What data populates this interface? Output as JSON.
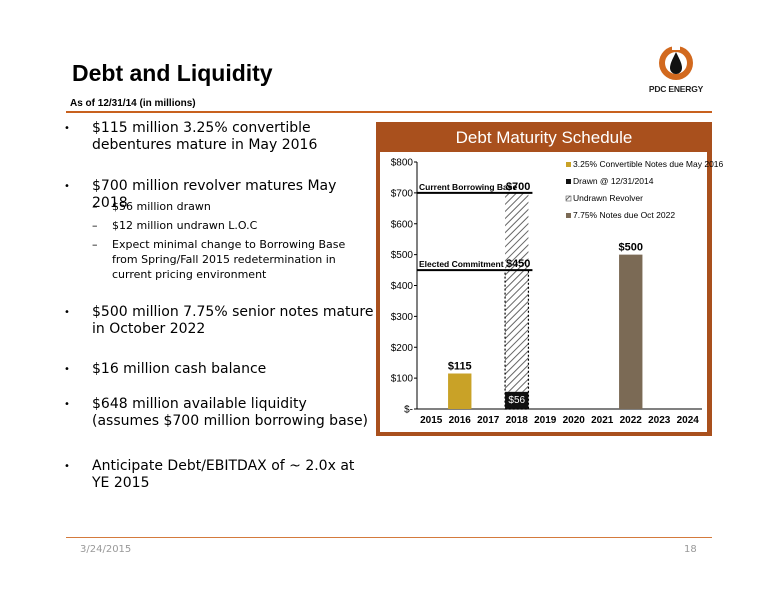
{
  "slide": {
    "title": "Debt and Liquidity",
    "subtitle": "As of 12/31/14 (in millions)",
    "logo_text": "PDC ENERGY",
    "footer_date": "3/24/2015",
    "page_number": "18"
  },
  "bullets": [
    {
      "text": "$115 million 3.25% convertible debentures mature in May 2016"
    },
    {
      "text": "$700 million revolver matures May 2018"
    },
    {
      "text": "$500 million 7.75% senior notes mature in October 2022"
    },
    {
      "text": "$16 million cash balance"
    },
    {
      "text": "$648 million available liquidity (assumes $700 million borrowing base)"
    },
    {
      "text": "Anticipate Debt/EBITDAX of ~ 2.0x at YE 2015"
    }
  ],
  "sub_bullets": [
    {
      "text": "$56 million drawn"
    },
    {
      "text": "$12 million undrawn L.O.C"
    },
    {
      "text": "Expect minimal change to Borrowing Base from Spring/Fall 2015 redetermination in current pricing environment"
    }
  ],
  "chart_data": {
    "type": "bar",
    "title": "Debt Maturity Schedule",
    "categories": [
      "2015",
      "2016",
      "2017",
      "2018",
      "2019",
      "2020",
      "2021",
      "2022",
      "2023",
      "2024"
    ],
    "y_ticks": [
      "$-",
      "$100",
      "$200",
      "$300",
      "$400",
      "$500",
      "$600",
      "$700",
      "$800"
    ],
    "ylim": [
      0,
      800
    ],
    "grid": false,
    "legend_position": "top-right",
    "series": [
      {
        "name": "3.25% Convertible Notes due May 2016",
        "color": "#c9a227",
        "values": [
          0,
          115,
          0,
          0,
          0,
          0,
          0,
          0,
          0,
          0
        ]
      },
      {
        "name": "Drawn @ 12/31/2014",
        "color": "#111111",
        "values": [
          0,
          0,
          0,
          56,
          0,
          0,
          0,
          0,
          0,
          0
        ]
      },
      {
        "name": "Undrawn Revolver",
        "color": "#888888",
        "values": [
          0,
          0,
          0,
          644,
          0,
          0,
          0,
          0,
          0,
          0
        ]
      },
      {
        "name": "7.75% Notes due Oct 2022",
        "color": "#7b6a55",
        "values": [
          0,
          0,
          0,
          0,
          0,
          0,
          0,
          500,
          0,
          0
        ]
      }
    ],
    "data_labels": [
      {
        "category": "2016",
        "text": "$115"
      },
      {
        "category": "2018",
        "text": "$56"
      },
      {
        "category": "2022",
        "text": "$500"
      }
    ],
    "reference_lines": [
      {
        "label": "Current Borrowing Base",
        "value_label": "$700",
        "value": 700
      },
      {
        "label": "Elected Commitment",
        "value_label": "$450",
        "value": 450
      }
    ]
  }
}
